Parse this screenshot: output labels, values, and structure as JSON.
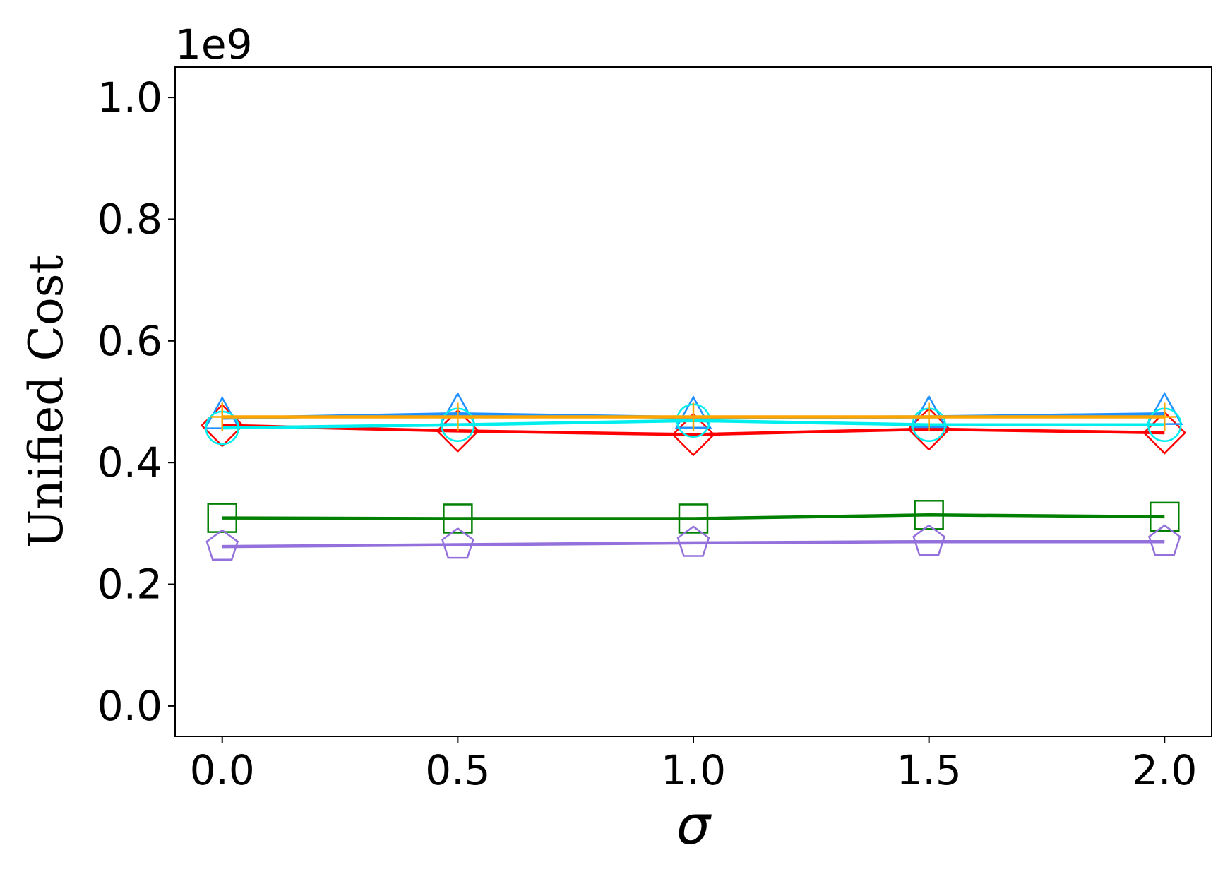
{
  "chart_data": {
    "type": "line",
    "x": [
      0.0,
      0.5,
      1.0,
      1.5,
      2.0
    ],
    "xticks": [
      "0.0",
      "0.5",
      "1.0",
      "1.5",
      "2.0"
    ],
    "yticks": [
      "0.0",
      "0.2",
      "0.4",
      "0.6",
      "0.8",
      "1.0"
    ],
    "ytick_values": [
      0.0,
      0.2,
      0.4,
      0.6,
      0.8,
      1.0
    ],
    "xlim": [
      -0.1,
      2.1
    ],
    "ylim": [
      -0.05,
      1.05
    ],
    "y_offset_label": "1e9",
    "xlabel": "σ",
    "ylabel": "Unified Cost",
    "grid": false,
    "series": [
      {
        "marker": "diamond",
        "color": "#ff0000",
        "values": [
          0.461,
          0.452,
          0.446,
          0.455,
          0.449
        ]
      },
      {
        "marker": "triangle",
        "color": "#1e90ff",
        "values": [
          0.473,
          0.48,
          0.474,
          0.475,
          0.48
        ]
      },
      {
        "marker": "circle",
        "color": "#00eeee",
        "values": [
          0.457,
          0.462,
          0.469,
          0.462,
          0.462
        ]
      },
      {
        "marker": "plus",
        "color": "#ffa500",
        "values": [
          0.475,
          0.475,
          0.475,
          0.475,
          0.475
        ]
      },
      {
        "marker": "square",
        "color": "#008000",
        "values": [
          0.309,
          0.308,
          0.308,
          0.314,
          0.311
        ]
      },
      {
        "marker": "pentagon",
        "color": "#9370db",
        "values": [
          0.262,
          0.265,
          0.268,
          0.27,
          0.27
        ]
      }
    ]
  }
}
